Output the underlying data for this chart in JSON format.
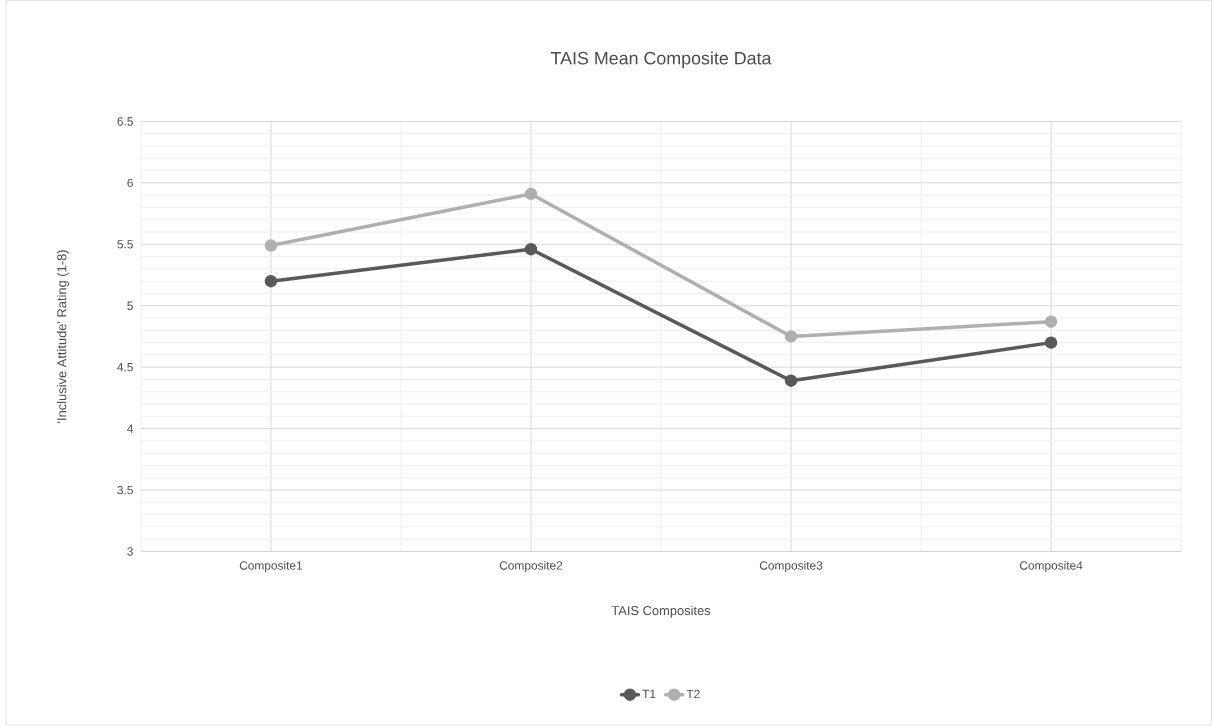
{
  "chart_data": {
    "type": "line",
    "title": "TAIS Mean Composite Data",
    "xlabel": "TAIS Composites",
    "ylabel": "'Inclusive Attitude' Rating (1-8)",
    "categories": [
      "Composite1",
      "Composite2",
      "Composite3",
      "Composite4"
    ],
    "series": [
      {
        "name": "T1",
        "color": "#595959",
        "values": [
          5.2,
          5.46,
          4.39,
          4.7
        ]
      },
      {
        "name": "T2",
        "color": "#afafaf",
        "values": [
          5.49,
          5.91,
          4.75,
          4.87
        ]
      }
    ],
    "ylim": [
      3,
      6.5
    ],
    "yticks": [
      3,
      3.5,
      4,
      4.5,
      5,
      5.5,
      6,
      6.5
    ],
    "grid": true,
    "legend": "bottom",
    "marker": "circle",
    "line_style": "solid"
  }
}
